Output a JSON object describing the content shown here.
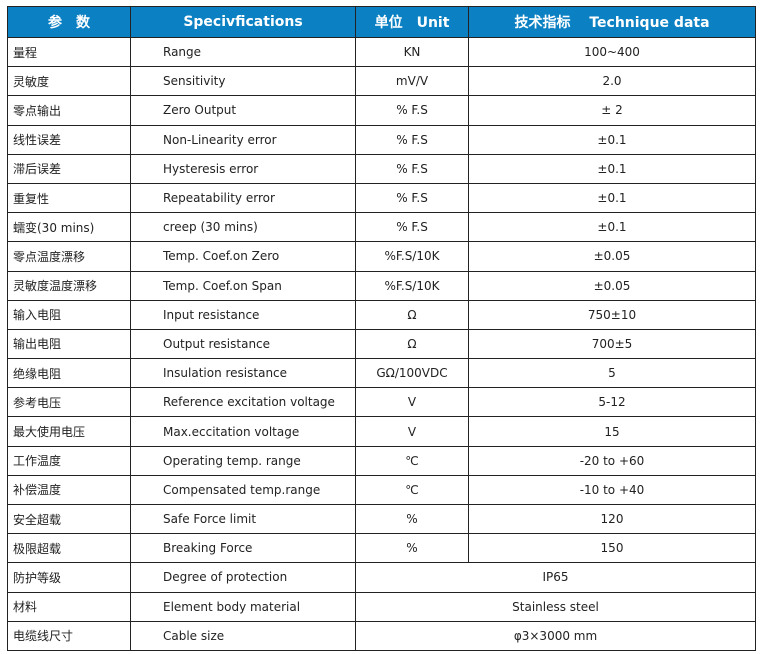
{
  "header_color": "#0b80c3",
  "headers": [
    "参　数",
    "Specivfications",
    "单位　Unit",
    "技术指标　 Technique data"
  ],
  "rows": [
    {
      "cn": "量程",
      "en": "Range",
      "unit": "KN",
      "value": "100~400"
    },
    {
      "cn": "灵敏度",
      "en": "Sensitivity",
      "unit": "mV/V",
      "value": "2.0"
    },
    {
      "cn": "零点输出",
      "en": "Zero Output",
      "unit": "% F.S",
      "value": "± 2"
    },
    {
      "cn": "线性误差",
      "en": "Non-Linearity error",
      "unit": "% F.S",
      "value": "±0.1"
    },
    {
      "cn": "滞后误差",
      "en": "Hysteresis error",
      "unit": "% F.S",
      "value": "±0.1"
    },
    {
      "cn": "重复性",
      "en": "Repeatability error",
      "unit": "% F.S",
      "value": "±0.1"
    },
    {
      "cn": "蠕变(30 mins)",
      "en": "creep (30 mins)",
      "unit": "% F.S",
      "value": "±0.1"
    },
    {
      "cn": "零点温度漂移",
      "en": "Temp. Coef.on Zero",
      "unit": "%F.S/10K",
      "value": "±0.05"
    },
    {
      "cn": "灵敏度温度漂移",
      "en": "Temp. Coef.on Span",
      "unit": "%F.S/10K",
      "value": "±0.05"
    },
    {
      "cn": "输入电阻",
      "en": "Input resistance",
      "unit": "Ω",
      "value": "750±10"
    },
    {
      "cn": "输出电阻",
      "en": "Output resistance",
      "unit": "Ω",
      "value": "700±5"
    },
    {
      "cn": "绝缘电阻",
      "en": "Insulation resistance",
      "unit": "GΩ/100VDC",
      "value": "5"
    },
    {
      "cn": "参考电压",
      "en": "Reference excitation voltage",
      "unit": "V",
      "value": "5-12"
    },
    {
      "cn": "最大使用电压",
      "en": "Max.eccitation voltage",
      "unit": "V",
      "value": "15"
    },
    {
      "cn": "工作温度",
      "en": "Operating temp. range",
      "unit": "℃",
      "value": "-20 to +60"
    },
    {
      "cn": "补偿温度",
      "en": "Compensated temp.range",
      "unit": "℃",
      "value": "-10 to +40"
    },
    {
      "cn": "安全超载",
      "en": "Safe Force limit",
      "unit": "%",
      "value": "120"
    },
    {
      "cn": "极限超载",
      "en": "Breaking Force",
      "unit": "%",
      "value": "150"
    }
  ],
  "span_rows": [
    {
      "cn": "防护等级",
      "en": "Degree of protection",
      "value": "IP65"
    },
    {
      "cn": "材料",
      "en": "Element body material",
      "value": "Stainless steel"
    },
    {
      "cn": "电缆线尺寸",
      "en": "Cable size",
      "value": "φ3×3000 mm"
    }
  ]
}
